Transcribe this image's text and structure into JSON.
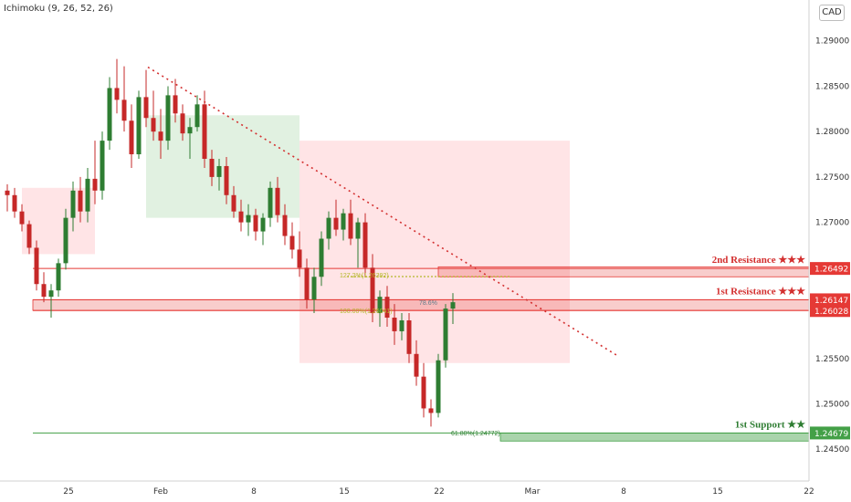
{
  "indicator_label": "Ichimoku (9, 26, 52, 26)",
  "currency": "CAD",
  "colors": {
    "up": "#2e7d32",
    "down": "#c62828",
    "resistance": "#e53935",
    "support": "#43a047",
    "cloud_bull": "#c8e6c9",
    "cloud_bear": "#ffcdd2",
    "trendline": "#d32f2f",
    "fib_yellow": "#b5b82a"
  },
  "chart_data": {
    "type": "candlestick",
    "x_tick_labels": [
      "25",
      "Feb",
      "8",
      "15",
      "22",
      "Mar",
      "8",
      "15",
      "22"
    ],
    "y_ticks": [
      1.29,
      1.285,
      1.28,
      1.275,
      1.27,
      1.265,
      1.26,
      1.255,
      1.25,
      1.245
    ],
    "y_tick_labels": [
      "1.29000",
      "1.28500",
      "1.28000",
      "1.27500",
      "1.27000",
      "1.26500",
      "1.26000",
      "1.25500",
      "1.25000",
      "1.24500"
    ],
    "ylim": [
      1.2415,
      1.2945
    ],
    "levels": [
      {
        "id": "res2",
        "label": "2nd Resistance ★★★",
        "value": 1.26492,
        "value_label": "1.26492",
        "kind": "resistance",
        "band_low": 1.264,
        "band_high": 1.2651
      },
      {
        "id": "res1",
        "label": "1st Resistance ★★★",
        "value": 1.26147,
        "value_label": "1.26147",
        "kind": "resistance",
        "band_low": 1.2603,
        "band_high": 1.26147
      },
      {
        "id": "mid",
        "label": "",
        "value": 1.26028,
        "value_label": "1.26028",
        "kind": "resistance"
      },
      {
        "id": "sup1",
        "label": "1st Support ★★",
        "value": 1.24679,
        "value_label": "1.24679",
        "kind": "support",
        "band_low": 1.2459,
        "band_high": 1.24679
      }
    ],
    "fib_annotations": [
      "127.2%(1.26392)",
      "100.00%(1.26041)",
      "78.6%",
      "61.80%(1.24772)"
    ],
    "trendline": {
      "from": [
        -2,
        1.287
      ],
      "to": [
        35,
        1.2552
      ]
    },
    "candles": [
      [
        1.2735,
        1.2742,
        1.2712,
        1.273
      ],
      [
        1.273,
        1.2738,
        1.2705,
        1.2712
      ],
      [
        1.2712,
        1.272,
        1.269,
        1.2698
      ],
      [
        1.2698,
        1.2702,
        1.2665,
        1.2672
      ],
      [
        1.2672,
        1.268,
        1.2625,
        1.2632
      ],
      [
        1.2632,
        1.2645,
        1.2612,
        1.2618
      ],
      [
        1.2618,
        1.2632,
        1.2595,
        1.2625
      ],
      [
        1.2625,
        1.266,
        1.2618,
        1.2655
      ],
      [
        1.2655,
        1.2715,
        1.2648,
        1.2705
      ],
      [
        1.2705,
        1.2745,
        1.269,
        1.2735
      ],
      [
        1.2735,
        1.275,
        1.27,
        1.2712
      ],
      [
        1.2712,
        1.276,
        1.27,
        1.2748
      ],
      [
        1.2748,
        1.279,
        1.272,
        1.2735
      ],
      [
        1.2735,
        1.28,
        1.2725,
        1.279
      ],
      [
        1.279,
        1.286,
        1.278,
        1.2848
      ],
      [
        1.2848,
        1.288,
        1.282,
        1.2835
      ],
      [
        1.2835,
        1.2872,
        1.28,
        1.2812
      ],
      [
        1.2812,
        1.283,
        1.276,
        1.2775
      ],
      [
        1.2775,
        1.2845,
        1.277,
        1.2838
      ],
      [
        1.2838,
        1.2868,
        1.2805,
        1.2815
      ],
      [
        1.2815,
        1.2845,
        1.279,
        1.28
      ],
      [
        1.28,
        1.2825,
        1.277,
        1.279
      ],
      [
        1.279,
        1.285,
        1.278,
        1.284
      ],
      [
        1.284,
        1.2858,
        1.281,
        1.282
      ],
      [
        1.282,
        1.283,
        1.279,
        1.2798
      ],
      [
        1.2798,
        1.2815,
        1.277,
        1.2805
      ],
      [
        1.2805,
        1.284,
        1.28,
        1.283
      ],
      [
        1.283,
        1.2845,
        1.276,
        1.277
      ],
      [
        1.277,
        1.278,
        1.274,
        1.275
      ],
      [
        1.275,
        1.277,
        1.2735,
        1.2762
      ],
      [
        1.2762,
        1.2772,
        1.272,
        1.273
      ],
      [
        1.273,
        1.274,
        1.2705,
        1.2712
      ],
      [
        1.2712,
        1.2725,
        1.269,
        1.27
      ],
      [
        1.27,
        1.272,
        1.2685,
        1.2708
      ],
      [
        1.2708,
        1.2715,
        1.268,
        1.269
      ],
      [
        1.269,
        1.271,
        1.2675,
        1.2705
      ],
      [
        1.2705,
        1.2745,
        1.2695,
        1.2738
      ],
      [
        1.2738,
        1.275,
        1.27,
        1.2708
      ],
      [
        1.2708,
        1.272,
        1.2675,
        1.2685
      ],
      [
        1.2685,
        1.27,
        1.266,
        1.267
      ],
      [
        1.267,
        1.269,
        1.264,
        1.265
      ],
      [
        1.265,
        1.266,
        1.2605,
        1.2615
      ],
      [
        1.2615,
        1.265,
        1.26,
        1.264
      ],
      [
        1.264,
        1.269,
        1.263,
        1.2682
      ],
      [
        1.2682,
        1.2712,
        1.267,
        1.2705
      ],
      [
        1.2705,
        1.2725,
        1.2685,
        1.2692
      ],
      [
        1.2692,
        1.2715,
        1.268,
        1.271
      ],
      [
        1.271,
        1.2725,
        1.2675,
        1.2682
      ],
      [
        1.2682,
        1.2705,
        1.265,
        1.27
      ],
      [
        1.27,
        1.271,
        1.264,
        1.265
      ],
      [
        1.265,
        1.2665,
        1.259,
        1.26
      ],
      [
        1.26,
        1.2625,
        1.2585,
        1.2618
      ],
      [
        1.2618,
        1.263,
        1.2585,
        1.2595
      ],
      [
        1.2595,
        1.261,
        1.2565,
        1.258
      ],
      [
        1.258,
        1.26,
        1.257,
        1.2592
      ],
      [
        1.2592,
        1.26,
        1.2545,
        1.2555
      ],
      [
        1.2555,
        1.257,
        1.252,
        1.253
      ],
      [
        1.253,
        1.2545,
        1.2485,
        1.2495
      ],
      [
        1.2495,
        1.2505,
        1.2475,
        1.249
      ],
      [
        1.249,
        1.2555,
        1.2485,
        1.2548
      ],
      [
        1.2548,
        1.261,
        1.254,
        1.2605
      ],
      [
        1.2605,
        1.2622,
        1.2588,
        1.2612
      ]
    ],
    "cloud_segments": [
      {
        "type": "bear",
        "from": 2,
        "to": 12,
        "upper": 1.2738,
        "lower": 1.2665
      },
      {
        "type": "bull",
        "from": 19,
        "to": 40,
        "upper": 1.2818,
        "lower": 1.2705
      },
      {
        "type": "bear",
        "from": 40,
        "to": 77,
        "upper": 1.279,
        "lower": 1.2545
      }
    ]
  }
}
